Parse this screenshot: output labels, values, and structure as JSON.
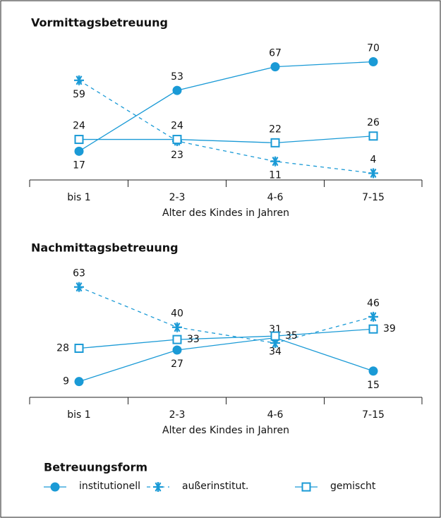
{
  "chart_data": [
    {
      "type": "line",
      "title": "Vormittagsbetreuung",
      "xlabel": "Alter des Kindes in Jahren",
      "categories": [
        "bis 1",
        "2-3",
        "4-6",
        "7-15"
      ],
      "ylim": [
        0,
        75
      ],
      "series": [
        {
          "name": "institutionell",
          "color": "#1a9ad6",
          "marker": "circle",
          "dashed": false,
          "values": [
            17,
            53,
            67,
            70
          ]
        },
        {
          "name": "außerinstitut.",
          "color": "#1a9ad6",
          "marker": "star",
          "dashed": true,
          "values": [
            59,
            23,
            11,
            4
          ]
        },
        {
          "name": "gemischt",
          "color": "#1a9ad6",
          "marker": "square",
          "dashed": false,
          "values": [
            24,
            24,
            22,
            26
          ]
        }
      ]
    },
    {
      "type": "line",
      "title": "Nachmittagsbetreuung",
      "xlabel": "Alter des Kindes in Jahren",
      "categories": [
        "bis 1",
        "2-3",
        "4-6",
        "7-15"
      ],
      "ylim": [
        0,
        70
      ],
      "series": [
        {
          "name": "institutionell",
          "color": "#1a9ad6",
          "marker": "circle",
          "dashed": false,
          "values": [
            9,
            27,
            34,
            15
          ]
        },
        {
          "name": "außerinstitut.",
          "color": "#1a9ad6",
          "marker": "star",
          "dashed": true,
          "values": [
            63,
            40,
            31,
            46
          ]
        },
        {
          "name": "gemischt",
          "color": "#1a9ad6",
          "marker": "square",
          "dashed": false,
          "values": [
            28,
            33,
            35,
            39
          ]
        }
      ]
    }
  ],
  "legend": {
    "title": "Betreuungsform"
  }
}
